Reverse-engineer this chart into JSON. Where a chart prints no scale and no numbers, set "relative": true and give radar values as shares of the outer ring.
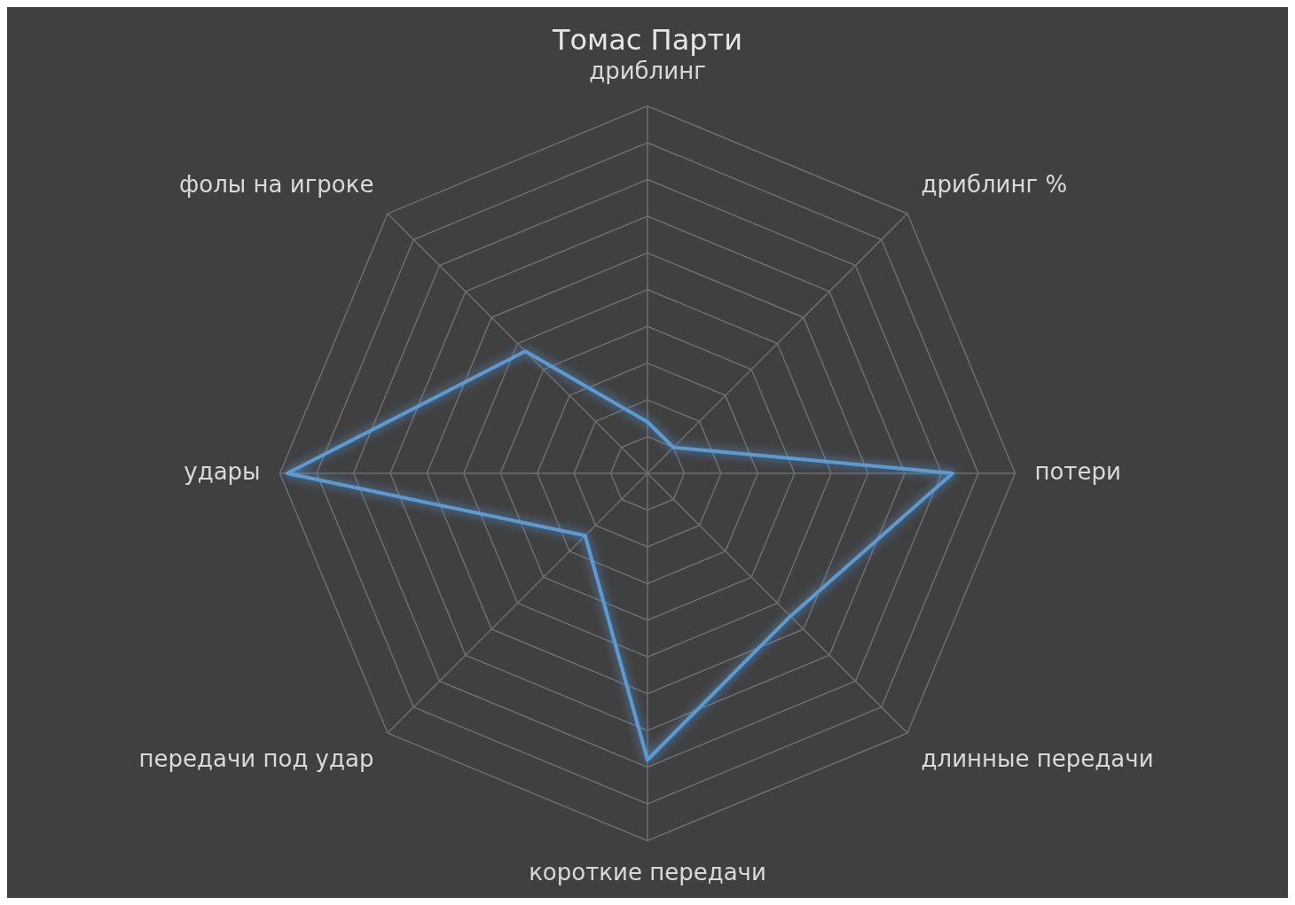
{
  "chart_data": {
    "type": "radar",
    "title": "Томас Парти",
    "relative": true,
    "categories": [
      "дриблинг",
      "дриблинг %",
      "потери",
      "длинные передачи",
      "короткие передачи",
      "передачи под удар",
      "удары",
      "фолы на игроке"
    ],
    "series": [
      {
        "color": "#5b9bd5",
        "values": [
          0.14,
          0.1,
          0.83,
          0.55,
          0.78,
          0.24,
          0.98,
          0.47
        ]
      }
    ],
    "legend": false
  }
}
